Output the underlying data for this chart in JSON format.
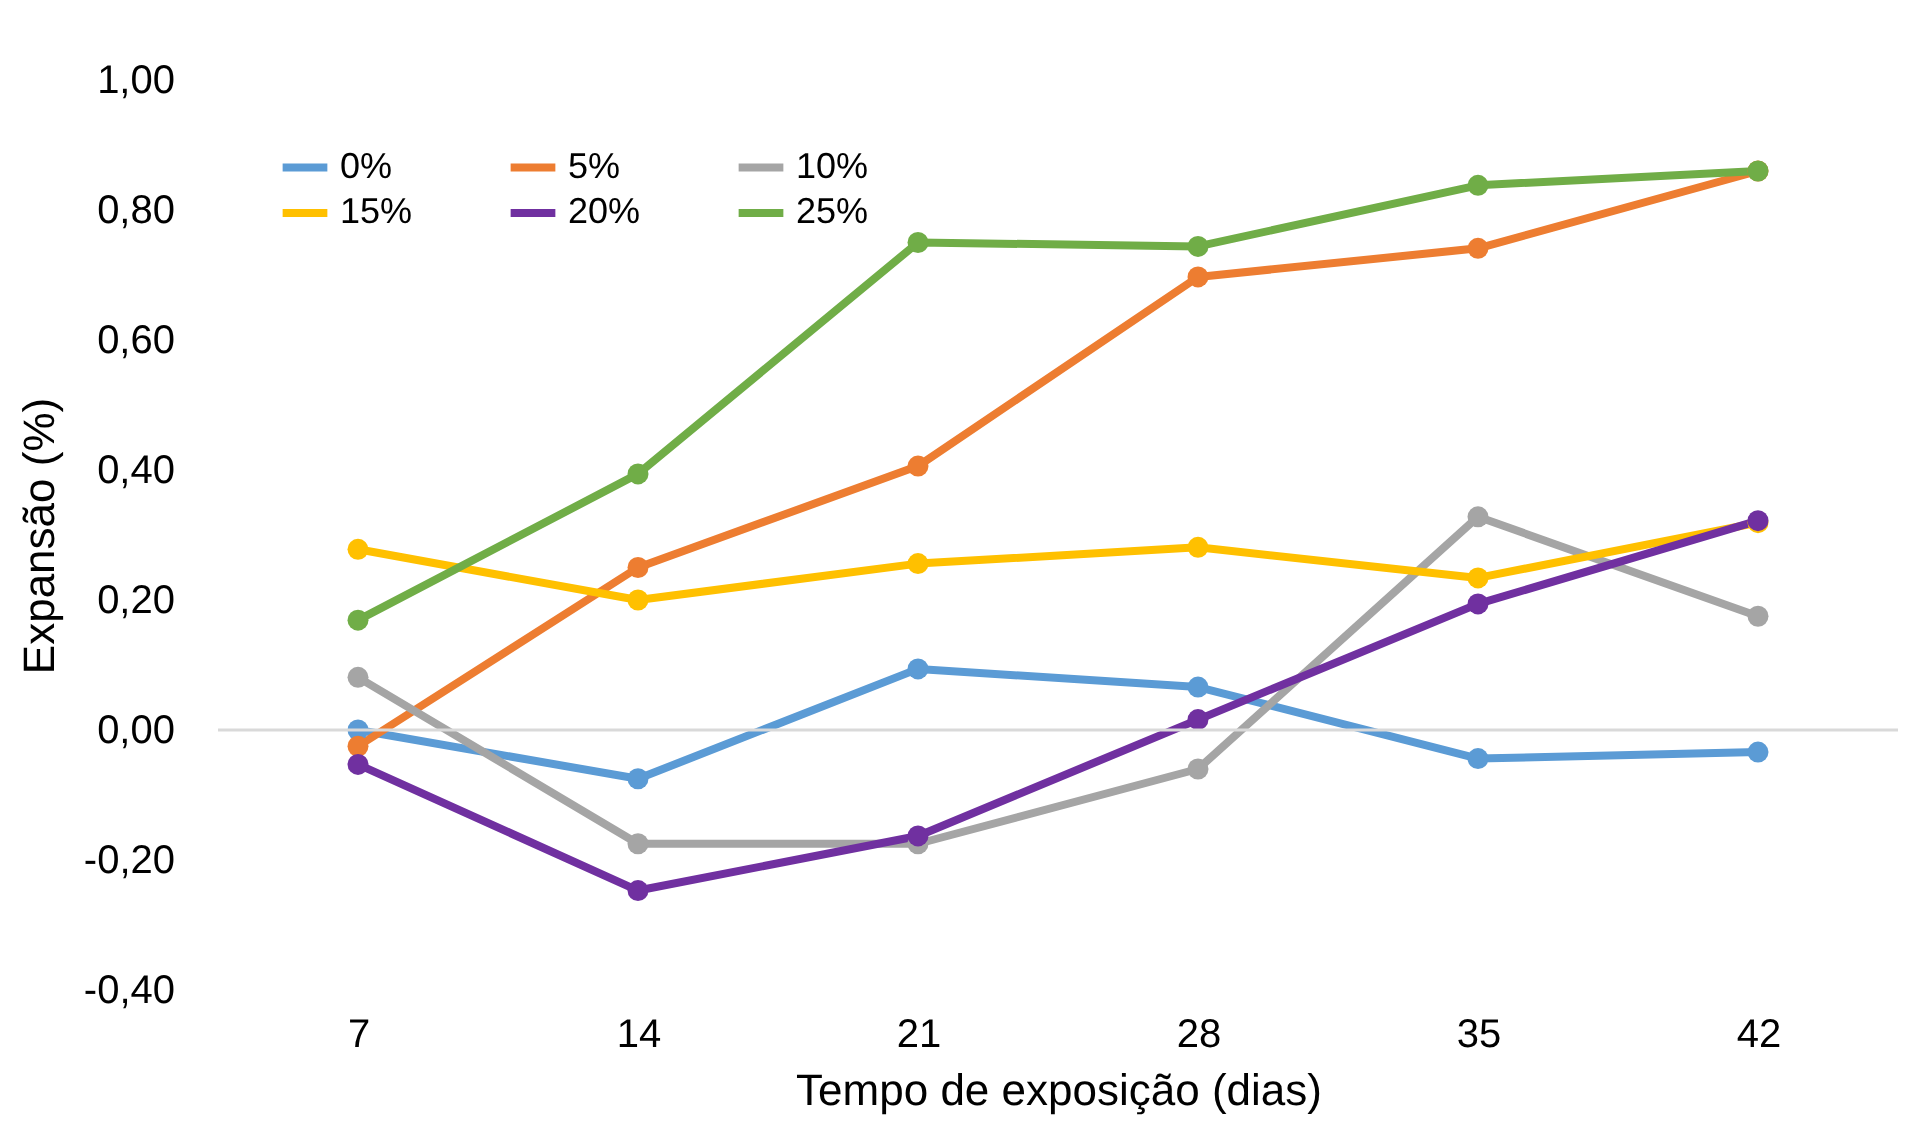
{
  "chart_data": {
    "type": "line",
    "xlabel": "Tempo de exposição (dias)",
    "ylabel": "Expansão (%)",
    "categories": [
      "7",
      "14",
      "21",
      "28",
      "35",
      "42"
    ],
    "series": [
      {
        "name": "0%",
        "color": "#5b9bd5",
        "values": [
          0.0,
          -0.075,
          0.094,
          0.066,
          -0.044,
          -0.034
        ]
      },
      {
        "name": "5%",
        "color": "#ed7d31",
        "values": [
          -0.025,
          0.25,
          0.406,
          0.697,
          0.741,
          0.86
        ]
      },
      {
        "name": "10%",
        "color": "#a5a5a5",
        "values": [
          0.081,
          -0.175,
          -0.175,
          -0.06,
          0.328,
          0.175
        ]
      },
      {
        "name": "15%",
        "color": "#ffc000",
        "values": [
          0.278,
          0.2,
          0.256,
          0.281,
          0.234,
          0.319
        ]
      },
      {
        "name": "20%",
        "color": "#7030a0",
        "values": [
          -0.053,
          -0.247,
          -0.163,
          0.016,
          0.194,
          0.322
        ]
      },
      {
        "name": "25%",
        "color": "#70ad47",
        "values": [
          0.169,
          0.394,
          0.75,
          0.744,
          0.838,
          0.86
        ]
      }
    ],
    "ylim": [
      -0.4,
      1.0
    ],
    "yticks": [
      {
        "value": -0.4,
        "label": "-0,40"
      },
      {
        "value": -0.2,
        "label": "-0,20"
      },
      {
        "value": 0,
        "label": "0,00"
      },
      {
        "value": 0.2,
        "label": "0,20"
      },
      {
        "value": 0.4,
        "label": "0,40"
      },
      {
        "value": 0.6,
        "label": "0,60"
      },
      {
        "value": 0.8,
        "label": "0,80"
      },
      {
        "value": 1.0,
        "label": "1,00"
      }
    ],
    "ref_lines": [
      {
        "axis": "y",
        "value": 0,
        "color": "#d9d9d9"
      }
    ],
    "grid": false,
    "legend": "top left",
    "marker": "circle",
    "line_style": "solid"
  }
}
